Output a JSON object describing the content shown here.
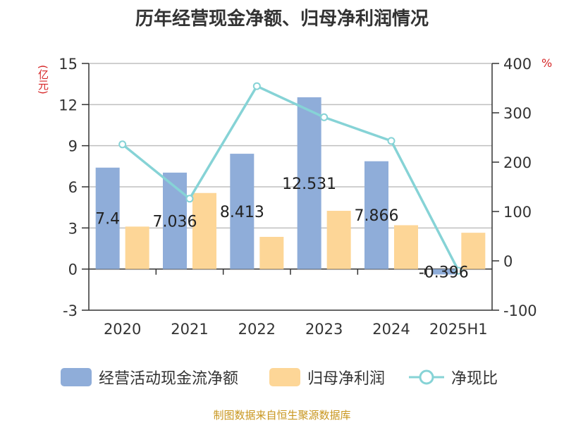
{
  "title": "历年经营现金净额、归母净利润情况",
  "left_unit": "(亿元)",
  "right_unit": "%",
  "source": "制图数据来自恒生聚源数据库",
  "colors": {
    "cash_flow": "#8fadd9",
    "net_profit": "#fdd697",
    "ratio": "#86d3d6",
    "axis": "#333333",
    "grid": "#bfbfbf",
    "unit": "#d62728"
  },
  "legend": [
    {
      "label": "经营活动现金流净额",
      "kind": "bar",
      "color": "#8fadd9"
    },
    {
      "label": "归母净利润",
      "kind": "bar",
      "color": "#fdd697"
    },
    {
      "label": "净现比",
      "kind": "line",
      "color": "#86d3d6"
    }
  ],
  "chart_data": {
    "type": "bar",
    "categories": [
      "2020",
      "2021",
      "2022",
      "2023",
      "2024",
      "2025H1"
    ],
    "series": [
      {
        "name": "经营活动现金流净额",
        "type": "bar",
        "axis": "left",
        "values": [
          7.4,
          7.036,
          8.413,
          12.531,
          7.866,
          -0.396
        ],
        "labels": [
          "7.4",
          "7.036",
          "8.413",
          "12.531",
          "7.866",
          "-0.396"
        ]
      },
      {
        "name": "归母净利润",
        "type": "bar",
        "axis": "left",
        "values": [
          3.1,
          5.55,
          2.35,
          4.25,
          3.2,
          2.65
        ]
      },
      {
        "name": "净现比",
        "type": "line",
        "axis": "right",
        "values": [
          236,
          126,
          354,
          291,
          243,
          -20
        ]
      }
    ],
    "ylim_left": [
      -3,
      15
    ],
    "yticks_left": [
      -3,
      0,
      3,
      6,
      9,
      12,
      15
    ],
    "ylim_right": [
      -100,
      400
    ],
    "yticks_right": [
      -100,
      0,
      100,
      200,
      300,
      400
    ],
    "grid": true,
    "legend_position": "bottom"
  }
}
